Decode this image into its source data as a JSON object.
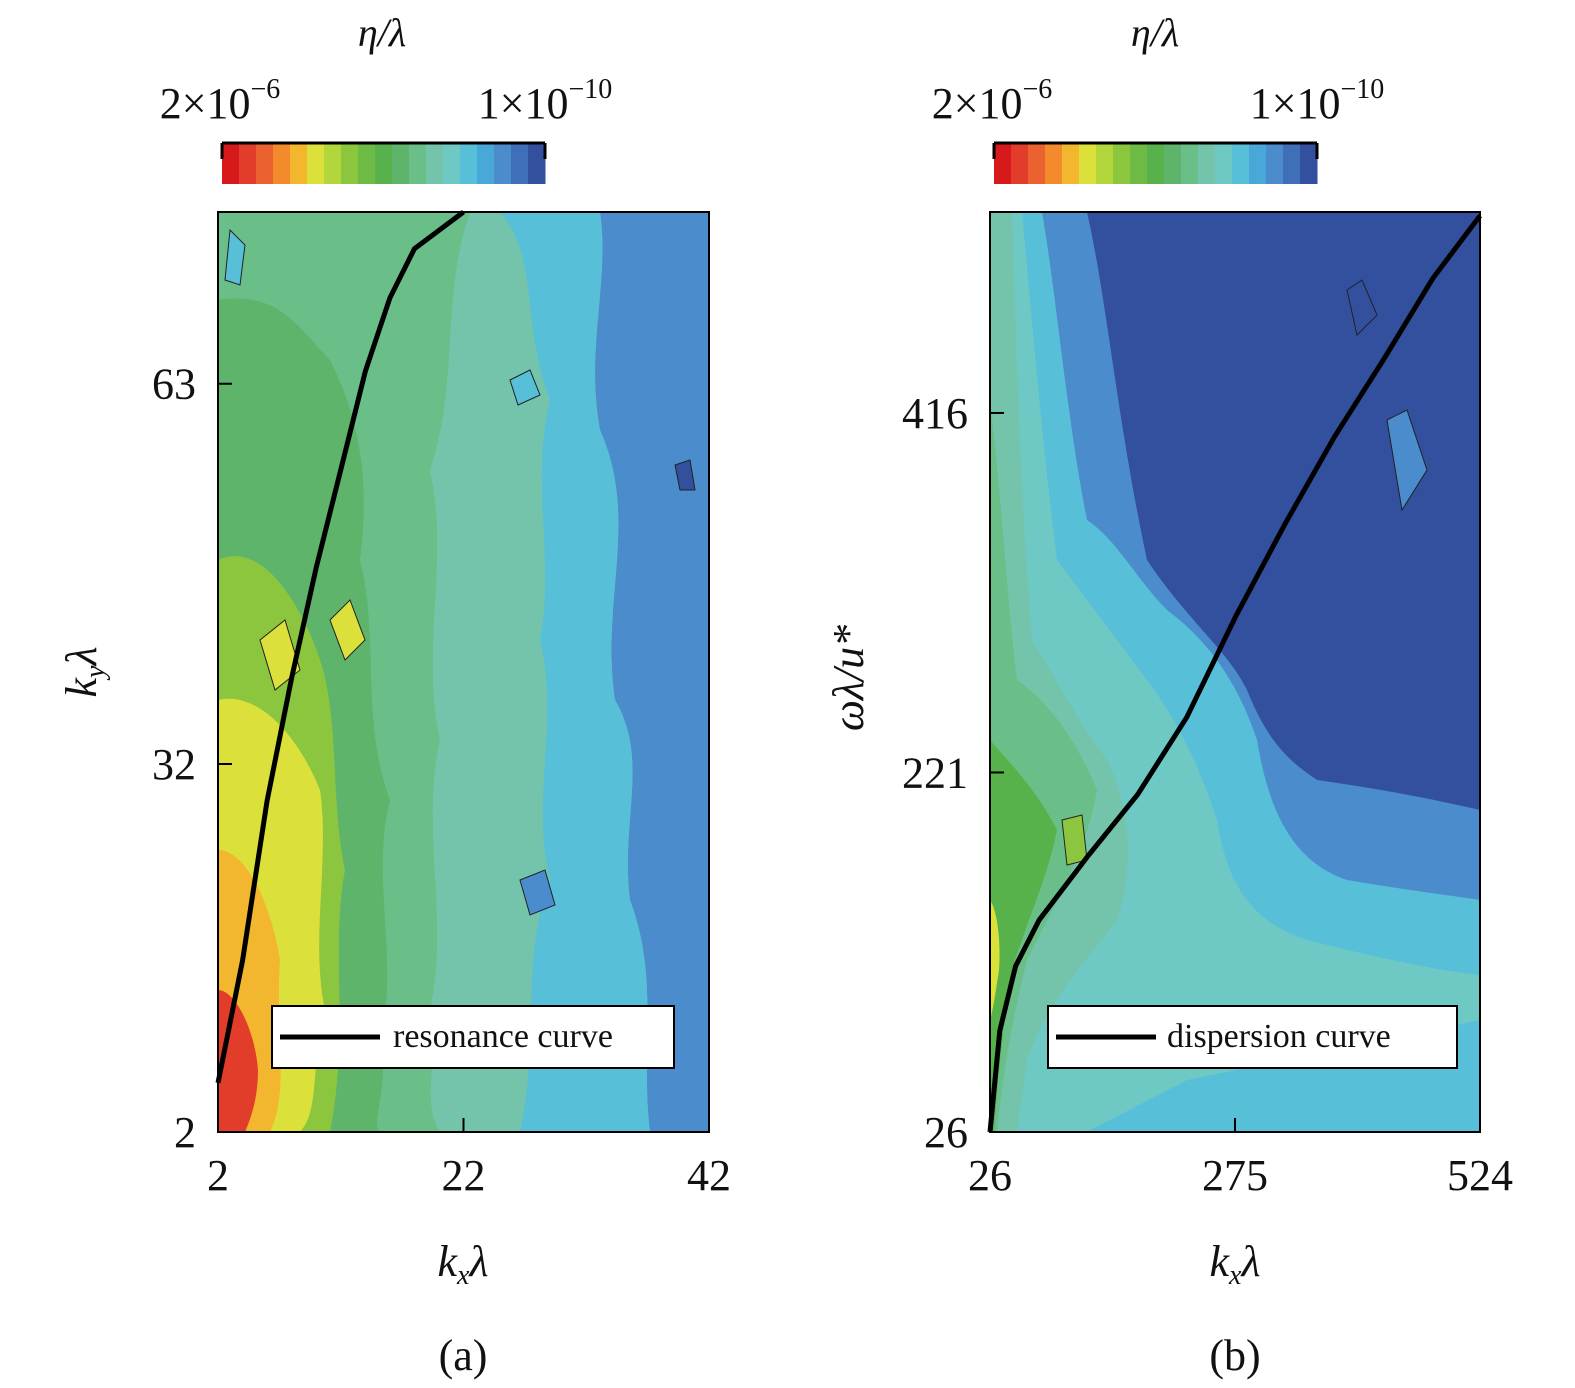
{
  "colormap": [
    "#d7191c",
    "#e23d2a",
    "#ec6130",
    "#f38b2c",
    "#f2b72e",
    "#dce03a",
    "#b3d63d",
    "#8cc63f",
    "#6dbb45",
    "#58b24c",
    "#5db46a",
    "#6abf89",
    "#74c4ac",
    "#6ec8c4",
    "#58bfd9",
    "#4aa8d8",
    "#4a8ccc",
    "#3f6fb9",
    "#33509f"
  ],
  "chart_data": [
    {
      "type": "heatmap",
      "panel_label": "(a)",
      "colorbar": {
        "title": "η/λ",
        "min_label": "2×10",
        "min_exp": "−6",
        "max_label": "1×10",
        "max_exp": "−10"
      },
      "xlabel": {
        "main": "k",
        "sub": "x",
        "tail": "λ"
      },
      "ylabel": {
        "main": "k",
        "sub": "y",
        "tail": "λ"
      },
      "xlim": [
        2,
        42
      ],
      "ylim": [
        2,
        77
      ],
      "xticks": [
        2,
        22,
        42
      ],
      "yticks": [
        2,
        32,
        63
      ],
      "curve": {
        "name": "resonance curve",
        "points": [
          [
            2,
            6
          ],
          [
            4,
            16
          ],
          [
            6,
            29
          ],
          [
            8,
            39
          ],
          [
            10,
            48
          ],
          [
            12,
            56
          ],
          [
            14,
            64
          ],
          [
            16,
            70
          ],
          [
            18,
            74
          ],
          [
            22,
            77
          ]
        ]
      },
      "legend_position": "bottom-right"
    },
    {
      "type": "heatmap",
      "panel_label": "(b)",
      "colorbar": {
        "title": "η/λ",
        "min_label": "2×10",
        "min_exp": "−6",
        "max_label": "1×10",
        "max_exp": "−10"
      },
      "xlabel": {
        "main": "k",
        "sub": "x",
        "tail": "λ"
      },
      "ylabel": {
        "main": "ωλ/u*",
        "sub": "",
        "tail": ""
      },
      "xlim": [
        26,
        524
      ],
      "ylim": [
        26,
        525
      ],
      "xticks": [
        26,
        275,
        524
      ],
      "yticks": [
        26,
        221,
        416
      ],
      "curve": {
        "name": "dispersion curve",
        "points": [
          [
            26,
            26
          ],
          [
            36,
            81
          ],
          [
            52,
            116
          ],
          [
            76,
            141
          ],
          [
            126,
            176
          ],
          [
            176,
            209
          ],
          [
            226,
            251
          ],
          [
            276,
            306
          ],
          [
            326,
            356
          ],
          [
            376,
            403
          ],
          [
            426,
            445
          ],
          [
            476,
            489
          ],
          [
            524,
            523
          ]
        ]
      },
      "legend_position": "bottom-right"
    }
  ]
}
